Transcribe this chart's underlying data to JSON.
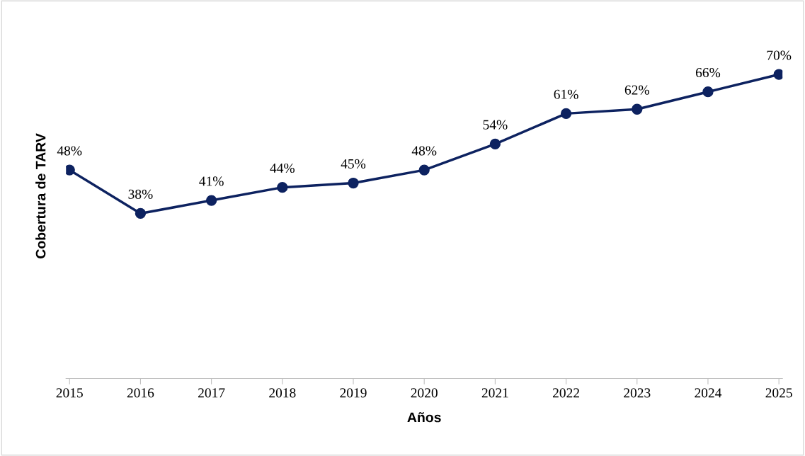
{
  "chart_data": {
    "type": "line",
    "xlabel": "Años",
    "ylabel": "Cobertura de TARV",
    "categories": [
      "2015",
      "2016",
      "2017",
      "2018",
      "2019",
      "2020",
      "2021",
      "2022",
      "2023",
      "2024",
      "2025"
    ],
    "series": [
      {
        "color": "#0d2260",
        "values": [
          48,
          38,
          41,
          44,
          45,
          48,
          54,
          61,
          62,
          66,
          70
        ],
        "value_labels": [
          "48%",
          "38%",
          "41%",
          "44%",
          "45%",
          "48%",
          "54%",
          "61%",
          "62%",
          "66%",
          "70%"
        ]
      }
    ],
    "marker": "circle",
    "line_style": "solid",
    "grid": false,
    "legend": false
  }
}
